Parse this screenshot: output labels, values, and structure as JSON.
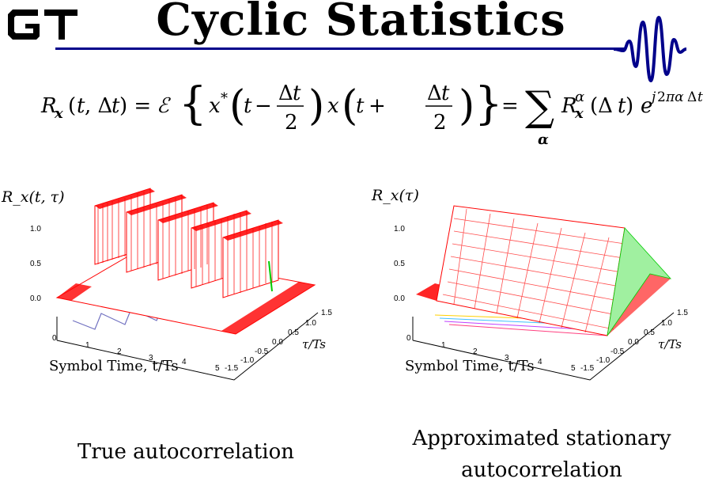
{
  "header": {
    "logo_text": "GT",
    "title": "Cyclic Statistics",
    "accent_color": "#00008b"
  },
  "equation": {
    "lhs": "R_x(t, Δt)",
    "middle": "ℰ{ x*(t − Δt/2) x(t + Δt/2) }",
    "rhs": "Σ_α R_x^α(Δt) e^{j2παΔt}"
  },
  "plots": [
    {
      "ylabel": "R_x(t, τ)",
      "z_ticks": [
        "1.0",
        "0.5",
        "0.0"
      ],
      "x_ticks": [
        "0",
        "1",
        "2",
        "3",
        "4",
        "5"
      ],
      "tau_ticks": [
        "1.5",
        "1.0",
        "0.5",
        "0.0",
        "-0.5",
        "-1.0",
        "-1.5"
      ],
      "xlabel": "Symbol Time, t/Ts",
      "tau_label": "τ/Ts",
      "caption": "True autocorrelation",
      "surface_color": "#ff0000",
      "highlight_color": "#00cc00"
    },
    {
      "ylabel": "R_x(τ)",
      "z_ticks": [
        "1.0",
        "0.5",
        "0.0"
      ],
      "x_ticks": [
        "0",
        "1",
        "2",
        "3",
        "4",
        "5"
      ],
      "tau_ticks": [
        "1.5",
        "1.0",
        "0.5",
        "0.0",
        "-0.5",
        "-1.0",
        "-1.5"
      ],
      "xlabel": "Symbol Time, t/Ts",
      "tau_label": "τ/Ts",
      "caption_line1": "Approximated stationary",
      "caption_line2": "autocorrelation",
      "surface_color": "#ff0000",
      "highlight_color": "#00cc00"
    }
  ]
}
